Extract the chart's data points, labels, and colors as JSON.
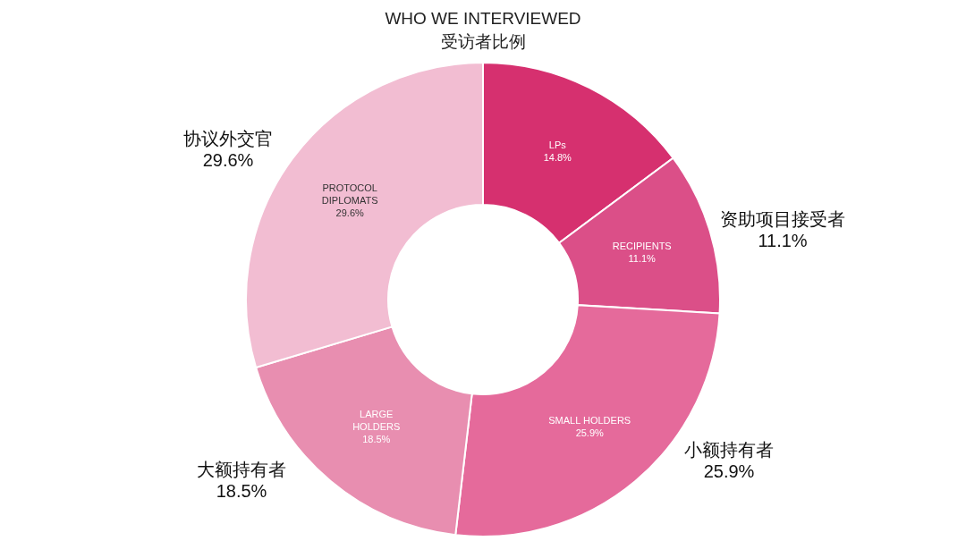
{
  "chart_data": {
    "type": "donut",
    "title": "WHO WE INTERVIEWED",
    "subtitle": "受访者比例",
    "categories": [
      "LPs",
      "RECIPIENTS",
      "SMALL HOLDERS",
      "LARGE\nHOLDERS",
      "PROTOCOL\nDIPLOMATS"
    ],
    "values": [
      14.8,
      11.1,
      25.9,
      18.5,
      29.6
    ],
    "value_labels": [
      "14.8%",
      "11.1%",
      "25.9%",
      "18.5%",
      "29.6%"
    ],
    "colors": [
      "#d6306f",
      "#db4f88",
      "#e56a9b",
      "#e88eb0",
      "#f2bdd2"
    ],
    "annotations": [
      "协议外交官\n29.6%",
      "资助项目接受者\n11.1%",
      "小额持有者\n25.9%",
      "大额持有者\n18.5%"
    ]
  }
}
